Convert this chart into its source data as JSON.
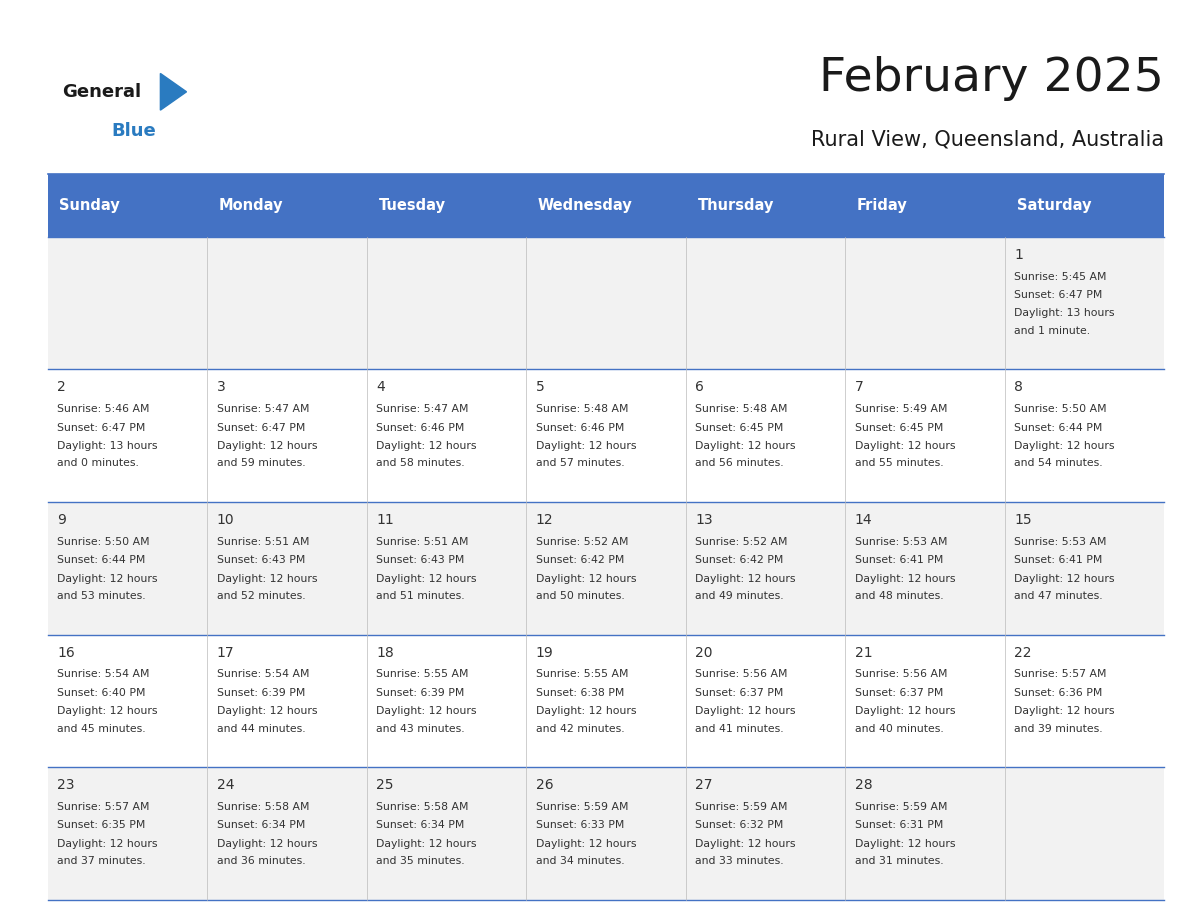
{
  "title": "February 2025",
  "subtitle": "Rural View, Queensland, Australia",
  "header_bg": "#4472C4",
  "header_text": "#FFFFFF",
  "cell_bg_odd": "#F2F2F2",
  "cell_bg_even": "#FFFFFF",
  "day_headers": [
    "Sunday",
    "Monday",
    "Tuesday",
    "Wednesday",
    "Thursday",
    "Friday",
    "Saturday"
  ],
  "title_color": "#1a1a1a",
  "subtitle_color": "#1a1a1a",
  "text_color": "#333333",
  "line_color": "#4472C4",
  "logo_general_color": "#1a1a1a",
  "logo_blue_color": "#2A7BC0",
  "logo_triangle_color": "#2A7BC0",
  "calendar_data": [
    [
      {
        "day": null,
        "sunrise": null,
        "sunset": null,
        "daylight_line1": null,
        "daylight_line2": null
      },
      {
        "day": null,
        "sunrise": null,
        "sunset": null,
        "daylight_line1": null,
        "daylight_line2": null
      },
      {
        "day": null,
        "sunrise": null,
        "sunset": null,
        "daylight_line1": null,
        "daylight_line2": null
      },
      {
        "day": null,
        "sunrise": null,
        "sunset": null,
        "daylight_line1": null,
        "daylight_line2": null
      },
      {
        "day": null,
        "sunrise": null,
        "sunset": null,
        "daylight_line1": null,
        "daylight_line2": null
      },
      {
        "day": null,
        "sunrise": null,
        "sunset": null,
        "daylight_line1": null,
        "daylight_line2": null
      },
      {
        "day": 1,
        "sunrise": "5:45 AM",
        "sunset": "6:47 PM",
        "daylight_line1": "Daylight: 13 hours",
        "daylight_line2": "and 1 minute."
      }
    ],
    [
      {
        "day": 2,
        "sunrise": "5:46 AM",
        "sunset": "6:47 PM",
        "daylight_line1": "Daylight: 13 hours",
        "daylight_line2": "and 0 minutes."
      },
      {
        "day": 3,
        "sunrise": "5:47 AM",
        "sunset": "6:47 PM",
        "daylight_line1": "Daylight: 12 hours",
        "daylight_line2": "and 59 minutes."
      },
      {
        "day": 4,
        "sunrise": "5:47 AM",
        "sunset": "6:46 PM",
        "daylight_line1": "Daylight: 12 hours",
        "daylight_line2": "and 58 minutes."
      },
      {
        "day": 5,
        "sunrise": "5:48 AM",
        "sunset": "6:46 PM",
        "daylight_line1": "Daylight: 12 hours",
        "daylight_line2": "and 57 minutes."
      },
      {
        "day": 6,
        "sunrise": "5:48 AM",
        "sunset": "6:45 PM",
        "daylight_line1": "Daylight: 12 hours",
        "daylight_line2": "and 56 minutes."
      },
      {
        "day": 7,
        "sunrise": "5:49 AM",
        "sunset": "6:45 PM",
        "daylight_line1": "Daylight: 12 hours",
        "daylight_line2": "and 55 minutes."
      },
      {
        "day": 8,
        "sunrise": "5:50 AM",
        "sunset": "6:44 PM",
        "daylight_line1": "Daylight: 12 hours",
        "daylight_line2": "and 54 minutes."
      }
    ],
    [
      {
        "day": 9,
        "sunrise": "5:50 AM",
        "sunset": "6:44 PM",
        "daylight_line1": "Daylight: 12 hours",
        "daylight_line2": "and 53 minutes."
      },
      {
        "day": 10,
        "sunrise": "5:51 AM",
        "sunset": "6:43 PM",
        "daylight_line1": "Daylight: 12 hours",
        "daylight_line2": "and 52 minutes."
      },
      {
        "day": 11,
        "sunrise": "5:51 AM",
        "sunset": "6:43 PM",
        "daylight_line1": "Daylight: 12 hours",
        "daylight_line2": "and 51 minutes."
      },
      {
        "day": 12,
        "sunrise": "5:52 AM",
        "sunset": "6:42 PM",
        "daylight_line1": "Daylight: 12 hours",
        "daylight_line2": "and 50 minutes."
      },
      {
        "day": 13,
        "sunrise": "5:52 AM",
        "sunset": "6:42 PM",
        "daylight_line1": "Daylight: 12 hours",
        "daylight_line2": "and 49 minutes."
      },
      {
        "day": 14,
        "sunrise": "5:53 AM",
        "sunset": "6:41 PM",
        "daylight_line1": "Daylight: 12 hours",
        "daylight_line2": "and 48 minutes."
      },
      {
        "day": 15,
        "sunrise": "5:53 AM",
        "sunset": "6:41 PM",
        "daylight_line1": "Daylight: 12 hours",
        "daylight_line2": "and 47 minutes."
      }
    ],
    [
      {
        "day": 16,
        "sunrise": "5:54 AM",
        "sunset": "6:40 PM",
        "daylight_line1": "Daylight: 12 hours",
        "daylight_line2": "and 45 minutes."
      },
      {
        "day": 17,
        "sunrise": "5:54 AM",
        "sunset": "6:39 PM",
        "daylight_line1": "Daylight: 12 hours",
        "daylight_line2": "and 44 minutes."
      },
      {
        "day": 18,
        "sunrise": "5:55 AM",
        "sunset": "6:39 PM",
        "daylight_line1": "Daylight: 12 hours",
        "daylight_line2": "and 43 minutes."
      },
      {
        "day": 19,
        "sunrise": "5:55 AM",
        "sunset": "6:38 PM",
        "daylight_line1": "Daylight: 12 hours",
        "daylight_line2": "and 42 minutes."
      },
      {
        "day": 20,
        "sunrise": "5:56 AM",
        "sunset": "6:37 PM",
        "daylight_line1": "Daylight: 12 hours",
        "daylight_line2": "and 41 minutes."
      },
      {
        "day": 21,
        "sunrise": "5:56 AM",
        "sunset": "6:37 PM",
        "daylight_line1": "Daylight: 12 hours",
        "daylight_line2": "and 40 minutes."
      },
      {
        "day": 22,
        "sunrise": "5:57 AM",
        "sunset": "6:36 PM",
        "daylight_line1": "Daylight: 12 hours",
        "daylight_line2": "and 39 minutes."
      }
    ],
    [
      {
        "day": 23,
        "sunrise": "5:57 AM",
        "sunset": "6:35 PM",
        "daylight_line1": "Daylight: 12 hours",
        "daylight_line2": "and 37 minutes."
      },
      {
        "day": 24,
        "sunrise": "5:58 AM",
        "sunset": "6:34 PM",
        "daylight_line1": "Daylight: 12 hours",
        "daylight_line2": "and 36 minutes."
      },
      {
        "day": 25,
        "sunrise": "5:58 AM",
        "sunset": "6:34 PM",
        "daylight_line1": "Daylight: 12 hours",
        "daylight_line2": "and 35 minutes."
      },
      {
        "day": 26,
        "sunrise": "5:59 AM",
        "sunset": "6:33 PM",
        "daylight_line1": "Daylight: 12 hours",
        "daylight_line2": "and 34 minutes."
      },
      {
        "day": 27,
        "sunrise": "5:59 AM",
        "sunset": "6:32 PM",
        "daylight_line1": "Daylight: 12 hours",
        "daylight_line2": "and 33 minutes."
      },
      {
        "day": 28,
        "sunrise": "5:59 AM",
        "sunset": "6:31 PM",
        "daylight_line1": "Daylight: 12 hours",
        "daylight_line2": "and 31 minutes."
      },
      {
        "day": null,
        "sunrise": null,
        "sunset": null,
        "daylight_line1": null,
        "daylight_line2": null
      }
    ]
  ]
}
